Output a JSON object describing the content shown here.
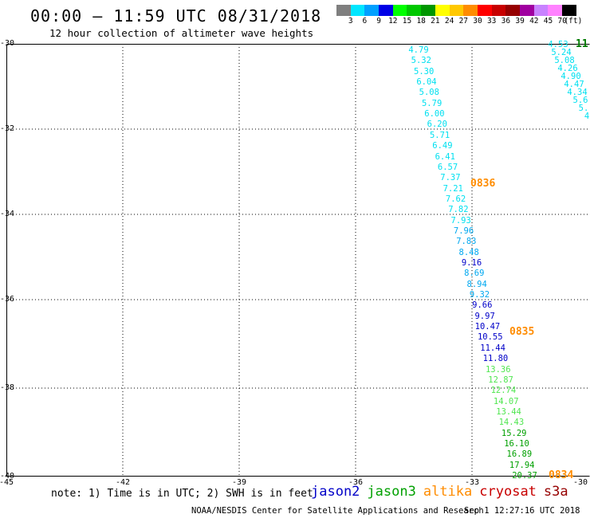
{
  "header": {
    "title": "00:00 – 11:59 UTC 08/31/2018",
    "subtitle": "12 hour collection of altimeter wave heights"
  },
  "colorbar": {
    "colors": [
      "#7f7f7f",
      "#00e6ff",
      "#00a0ff",
      "#0000e6",
      "#00ff00",
      "#00c800",
      "#009600",
      "#ffff00",
      "#ffc800",
      "#ff8c00",
      "#ff0000",
      "#c80000",
      "#960000",
      "#a000a0",
      "#c882ff",
      "#ff82ff",
      "#000000"
    ],
    "labels": [
      "3",
      "6",
      "9",
      "12",
      "15",
      "18",
      "21",
      "24",
      "27",
      "30",
      "33",
      "36",
      "39",
      "42",
      "45",
      "70",
      "(ft)"
    ]
  },
  "map": {
    "lat_labels": [
      "-30",
      "-32",
      "-34",
      "-36",
      "-38",
      "-40"
    ],
    "lon_labels": [
      "-45",
      "-42",
      "-39",
      "-36",
      "-33",
      "-30"
    ],
    "colors": {
      "c1": "#00e0f0",
      "c2": "#00a8f0",
      "c3": "#0000c8",
      "c4": "#50e650",
      "c5": "#00a000",
      "tm": "#ff8c00",
      "tg": "#007a00"
    },
    "track_main": [
      [
        "4.79",
        "c1"
      ],
      [
        "5.32",
        "c1"
      ],
      [
        "5.30",
        "c1"
      ],
      [
        "6.04",
        "c1"
      ],
      [
        "5.08",
        "c1"
      ],
      [
        "5.79",
        "c1"
      ],
      [
        "6.00",
        "c1"
      ],
      [
        "6.20",
        "c1"
      ],
      [
        "5.71",
        "c1"
      ],
      [
        "6.49",
        "c1"
      ],
      [
        "6.41",
        "c1"
      ],
      [
        "6.57",
        "c1"
      ],
      [
        "7.37",
        "c1"
      ],
      [
        "7.21",
        "c1"
      ],
      [
        "7.62",
        "c1"
      ],
      [
        "7.82",
        "c1"
      ],
      [
        "7.93",
        "c1"
      ],
      [
        "7.96",
        "c2"
      ],
      [
        "7.83",
        "c2"
      ],
      [
        "8.48",
        "c2"
      ],
      [
        "9.16",
        "c3"
      ],
      [
        "8.69",
        "c2"
      ],
      [
        "8.94",
        "c2"
      ],
      [
        "9.32",
        "c2"
      ],
      [
        "9.66",
        "c3"
      ],
      [
        "9.97",
        "c3"
      ],
      [
        "10.47",
        "c3"
      ],
      [
        "10.55",
        "c3"
      ],
      [
        "11.44",
        "c3"
      ],
      [
        "11.80",
        "c3"
      ],
      [
        "13.36",
        "c4"
      ],
      [
        "12.87",
        "c4"
      ],
      [
        "12.74",
        "c4"
      ],
      [
        "14.07",
        "c4"
      ],
      [
        "13.44",
        "c4"
      ],
      [
        "14.43",
        "c4"
      ],
      [
        "15.29",
        "c5"
      ],
      [
        "16.10",
        "c5"
      ],
      [
        "16.89",
        "c5"
      ],
      [
        "17.94",
        "c5"
      ],
      [
        "20.37",
        "c5"
      ]
    ],
    "track_right": [
      [
        "4.53",
        "c1"
      ],
      [
        "5.24",
        "c1"
      ],
      [
        "5.08",
        "c1"
      ],
      [
        "4.26",
        "c1"
      ],
      [
        "4.90",
        "c1"
      ],
      [
        "4.47",
        "c1"
      ],
      [
        "4.34",
        "c1"
      ],
      [
        "5.6",
        "c1"
      ],
      [
        "5.",
        "c1"
      ],
      [
        "4",
        "c1"
      ],
      [
        "",
        "c1"
      ]
    ],
    "time_labels": [
      {
        "text": "0836",
        "color": "tm"
      },
      {
        "text": "0835",
        "color": "tm"
      },
      {
        "text": "0834",
        "color": "tm"
      },
      {
        "text": "11",
        "color": "tg"
      }
    ]
  },
  "footer": {
    "note": "note: 1) Time is in UTC; 2) SWH is in feet",
    "satellites": [
      {
        "name": "jason2",
        "color": "#0000c8"
      },
      {
        "name": "jason3",
        "color": "#00a000"
      },
      {
        "name": "altika",
        "color": "#ff8c00"
      },
      {
        "name": "cryosat",
        "color": "#c80000"
      },
      {
        "name": "s3a",
        "color": "#960000"
      }
    ],
    "credit": "NOAA/NESDIS Center for Satellite Applications and Research",
    "generated": "Sep  1 12:27:16 UTC 2018"
  }
}
